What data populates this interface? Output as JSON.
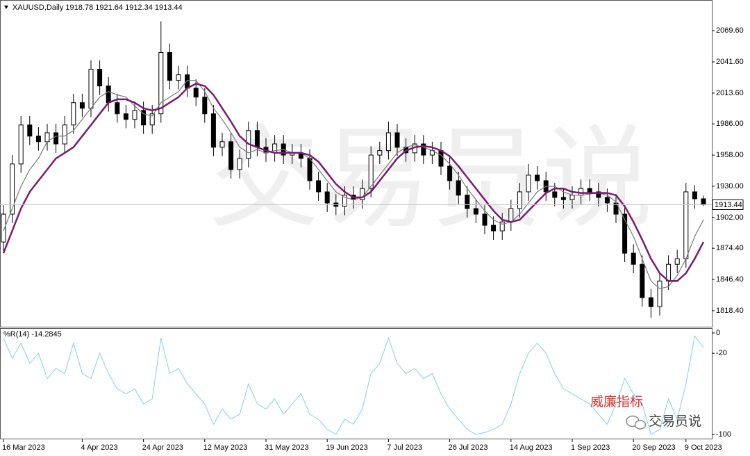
{
  "chart_data": [
    {
      "type": "candlestick",
      "title": "XAUUSD,Daily",
      "categories": [
        "16 Mar 2023",
        null,
        null,
        null,
        null,
        null,
        null,
        null,
        null,
        "4 Apr 2023",
        null,
        null,
        null,
        null,
        null,
        null,
        "24 Apr 2023",
        null,
        null,
        null,
        null,
        null,
        null,
        "12 May 2023",
        null,
        null,
        null,
        null,
        null,
        null,
        "31 May 2023",
        null,
        null,
        null,
        null,
        null,
        null,
        "19 Jun 2023",
        null,
        null,
        null,
        null,
        null,
        null,
        "7 Jul 2023",
        null,
        null,
        null,
        null,
        null,
        null,
        "26 Jul 2023",
        null,
        null,
        null,
        null,
        null,
        null,
        "14 Aug 2023",
        null,
        null,
        null,
        null,
        null,
        null,
        "1 Sep 2023",
        null,
        null,
        null,
        null,
        null,
        null,
        "20 Sep 2023",
        null,
        null,
        null,
        null,
        null,
        "9 Oct 2023",
        null,
        null
      ],
      "open": [
        1880,
        1905,
        1950,
        1985,
        1975,
        1970,
        1978,
        1968,
        1985,
        2005,
        2000,
        2035,
        2020,
        2005,
        1995,
        1990,
        1998,
        1985,
        1995,
        2050,
        2025,
        2030,
        2018,
        2010,
        1995,
        1965,
        1970,
        1945,
        1955,
        1980,
        1965,
        1960,
        1968,
        1958,
        1960,
        1955,
        1935,
        1925,
        1915,
        1912,
        1922,
        1918,
        1928,
        1958,
        1962,
        1978,
        1965,
        1960,
        1968,
        1958,
        1962,
        1948,
        1935,
        1922,
        1910,
        1905,
        1895,
        1890,
        1898,
        1910,
        1925,
        1940,
        1935,
        1925,
        1920,
        1918,
        1922,
        1928,
        1925,
        1920,
        1915,
        1905,
        1870,
        1860,
        1830,
        1822,
        1845,
        1860,
        1865,
        1925,
        1918.78
      ],
      "high": [
        1913,
        1958,
        1993,
        1993,
        1983,
        1986,
        1986,
        1993,
        2013,
        2013,
        2043,
        2043,
        2028,
        2013,
        2003,
        2006,
        2006,
        2003,
        2078,
        2058,
        2038,
        2038,
        2026,
        2018,
        2003,
        1978,
        1978,
        1963,
        1988,
        1988,
        1973,
        1976,
        1976,
        1968,
        1968,
        1963,
        1943,
        1933,
        1923,
        1930,
        1930,
        1936,
        1966,
        1970,
        1988,
        1986,
        1973,
        1976,
        1976,
        1970,
        1970,
        1956,
        1943,
        1930,
        1918,
        1913,
        1903,
        1906,
        1918,
        1933,
        1950,
        1948,
        1943,
        1933,
        1928,
        1930,
        1936,
        1936,
        1933,
        1928,
        1923,
        1913,
        1878,
        1868,
        1838,
        1853,
        1868,
        1873,
        1933,
        1931,
        1921.64
      ],
      "low": [
        1872,
        1897,
        1942,
        1967,
        1962,
        1962,
        1960,
        1960,
        1977,
        1992,
        1992,
        2012,
        1997,
        1987,
        1982,
        1982,
        1977,
        1977,
        1987,
        2017,
        2017,
        2010,
        2002,
        1987,
        1957,
        1957,
        1937,
        1937,
        1947,
        1957,
        1952,
        1952,
        1950,
        1950,
        1947,
        1927,
        1917,
        1907,
        1904,
        1904,
        1910,
        1910,
        1920,
        1950,
        1954,
        1957,
        1952,
        1952,
        1950,
        1950,
        1940,
        1927,
        1914,
        1902,
        1897,
        1887,
        1882,
        1882,
        1890,
        1902,
        1917,
        1927,
        1917,
        1912,
        1910,
        1910,
        1914,
        1917,
        1912,
        1907,
        1897,
        1862,
        1852,
        1822,
        1812,
        1814,
        1837,
        1852,
        1857,
        1910,
        1912.34
      ],
      "close": [
        1905,
        1950,
        1985,
        1975,
        1970,
        1978,
        1968,
        1985,
        2005,
        2000,
        2035,
        2020,
        2005,
        1995,
        1990,
        1998,
        1985,
        1995,
        2050,
        2025,
        2030,
        2018,
        2010,
        1995,
        1965,
        1970,
        1945,
        1955,
        1980,
        1965,
        1960,
        1968,
        1958,
        1960,
        1955,
        1935,
        1925,
        1915,
        1912,
        1922,
        1918,
        1928,
        1958,
        1962,
        1978,
        1965,
        1960,
        1968,
        1958,
        1962,
        1948,
        1935,
        1922,
        1910,
        1905,
        1895,
        1890,
        1898,
        1910,
        1925,
        1940,
        1935,
        1925,
        1920,
        1918,
        1922,
        1928,
        1925,
        1920,
        1915,
        1905,
        1870,
        1860,
        1830,
        1822,
        1845,
        1860,
        1865,
        1925,
        1918.78,
        1913.44
      ],
      "lines": [
        {
          "color": "#7a7a7a",
          "values": [
            1890,
            1910,
            1930,
            1945,
            1955,
            1970,
            1975,
            1975,
            1980,
            1990,
            2000,
            2010,
            2015,
            2012,
            2010,
            2002,
            1995,
            1993,
            2005,
            2010,
            2015,
            2025,
            2025,
            2015,
            2000,
            1990,
            1978,
            1965,
            1960,
            1963,
            1960,
            1962,
            1963,
            1960,
            1960,
            1955,
            1945,
            1935,
            1925,
            1920,
            1918,
            1920,
            1930,
            1940,
            1950,
            1960,
            1965,
            1967,
            1965,
            1962,
            1958,
            1950,
            1940,
            1928,
            1918,
            1908,
            1900,
            1896,
            1898,
            1905,
            1915,
            1925,
            1930,
            1930,
            1925,
            1922,
            1922,
            1923,
            1924,
            1922,
            1916,
            1900,
            1885,
            1865,
            1845,
            1838,
            1840,
            1850,
            1865,
            1885,
            1900
          ]
        },
        {
          "color": "#7b1a6e",
          "values": [
            1870,
            1890,
            1910,
            1925,
            1935,
            1945,
            1955,
            1960,
            1965,
            1975,
            1985,
            1995,
            2005,
            2008,
            2008,
            2005,
            2000,
            1998,
            2000,
            2005,
            2010,
            2018,
            2022,
            2020,
            2012,
            2000,
            1988,
            1975,
            1968,
            1965,
            1962,
            1960,
            1960,
            1960,
            1960,
            1958,
            1952,
            1942,
            1932,
            1925,
            1920,
            1920,
            1925,
            1935,
            1945,
            1955,
            1962,
            1965,
            1966,
            1965,
            1962,
            1957,
            1948,
            1938,
            1928,
            1918,
            1908,
            1900,
            1898,
            1900,
            1908,
            1916,
            1924,
            1928,
            1928,
            1925,
            1924,
            1924,
            1924,
            1924,
            1922,
            1912,
            1898,
            1882,
            1865,
            1852,
            1845,
            1845,
            1852,
            1865,
            1880
          ]
        }
      ],
      "ylim": [
        1804,
        2094
      ],
      "yticks": [
        {
          "value": 1818.4,
          "label": "1818.40"
        },
        {
          "value": 1846.4,
          "label": "1846.40"
        },
        {
          "value": 1874.4,
          "label": "1874.40"
        },
        {
          "value": 1902,
          "label": "1902.00"
        },
        {
          "value": 1930,
          "label": "1930.00"
        },
        {
          "value": 1958,
          "label": "1958.00"
        },
        {
          "value": 1986,
          "label": "1986.00"
        },
        {
          "value": 2013.6,
          "label": "2013.60"
        },
        {
          "value": 2041.6,
          "label": "2041.60"
        },
        {
          "value": 2069.6,
          "label": "2069.60"
        }
      ]
    },
    {
      "type": "line",
      "title": "%R(14)",
      "color": "#7fd0ef",
      "values": [
        -5,
        -25,
        -10,
        -30,
        -20,
        -45,
        -35,
        -40,
        -10,
        -40,
        -45,
        -20,
        -40,
        -55,
        -60,
        -55,
        -70,
        -65,
        -5,
        -40,
        -35,
        -50,
        -60,
        -70,
        -90,
        -75,
        -85,
        -80,
        -50,
        -70,
        -75,
        -65,
        -80,
        -70,
        -60,
        -80,
        -85,
        -95,
        -100,
        -85,
        -90,
        -75,
        -40,
        -30,
        -5,
        -30,
        -40,
        -35,
        -45,
        -40,
        -60,
        -75,
        -85,
        -95,
        -100,
        -98,
        -95,
        -90,
        -70,
        -40,
        -20,
        -10,
        -20,
        -40,
        -55,
        -60,
        -65,
        -70,
        -80,
        -90,
        -70,
        -45,
        -60,
        -70,
        -100,
        -95,
        -65,
        -85,
        -50,
        -3,
        -14.2845
      ],
      "ylim": [
        -104.8,
        4.8
      ],
      "yticks": [
        0,
        -20,
        -100
      ]
    }
  ],
  "watermark": "交易员说",
  "annotation": "威廉指标",
  "brand": "交易员说"
}
